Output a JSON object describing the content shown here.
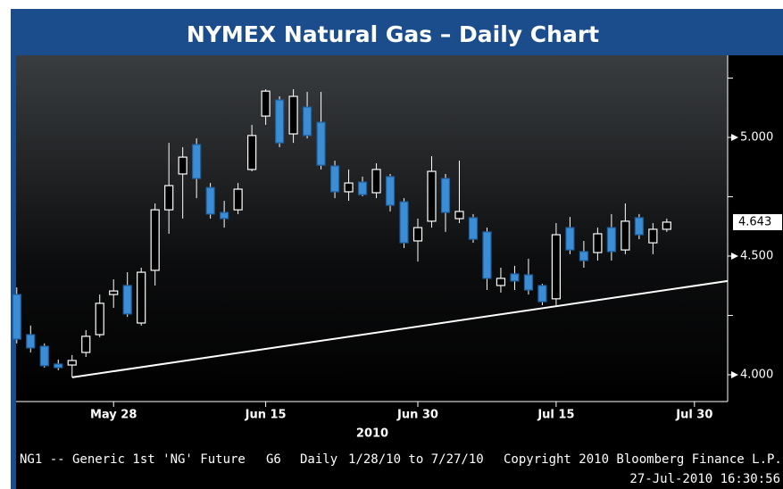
{
  "chart_data": {
    "type": "candlestick",
    "title": "NYMEX Natural Gas  – Daily Chart",
    "year_label": "2010",
    "footer": {
      "security": "NG1 -- Generic 1st 'NG' Future",
      "page": "G6",
      "period": "Daily",
      "range": "1/28/10 to 7/27/10",
      "copyright": "Copyright 2010 Bloomberg Finance L.P.",
      "timestamp": "27-Jul-2010 16:30:56"
    },
    "up_color": "#ffffff",
    "down_color": "#3b8ed6",
    "open": [
      4.338,
      4.169,
      4.12,
      4.045,
      4.041,
      4.094,
      4.169,
      4.338,
      4.376,
      4.218,
      4.44,
      4.695,
      4.846,
      4.97,
      4.789,
      4.684,
      4.695,
      4.865,
      5.09,
      5.158,
      5.015,
      5.128,
      5.064,
      4.88,
      4.771,
      4.812,
      4.767,
      4.835,
      4.729,
      4.564,
      4.647,
      4.827,
      4.658,
      4.662,
      4.602,
      4.376,
      4.425,
      4.421,
      4.376,
      4.32,
      4.62,
      4.519,
      4.515,
      4.62,
      4.526,
      4.662,
      4.556,
      4.613
    ],
    "high": [
      4.368,
      4.207,
      4.132,
      4.064,
      4.083,
      4.188,
      4.338,
      4.402,
      4.432,
      4.451,
      4.722,
      4.977,
      4.959,
      4.996,
      4.808,
      4.733,
      4.808,
      5.053,
      5.203,
      5.173,
      5.203,
      5.192,
      5.192,
      4.902,
      4.865,
      4.835,
      4.891,
      4.846,
      4.744,
      4.658,
      4.921,
      4.846,
      4.902,
      4.677,
      4.62,
      4.451,
      4.459,
      4.489,
      4.383,
      4.639,
      4.665,
      4.564,
      4.62,
      4.677,
      4.722,
      4.677,
      4.639,
      4.658
    ],
    "low": [
      4.132,
      4.094,
      4.03,
      4.019,
      3.989,
      4.075,
      4.158,
      4.282,
      4.244,
      4.207,
      4.376,
      4.594,
      4.658,
      4.744,
      4.658,
      4.62,
      4.677,
      4.857,
      5.053,
      4.959,
      4.977,
      4.996,
      4.865,
      4.744,
      4.733,
      4.752,
      4.744,
      4.688,
      4.534,
      4.477,
      4.62,
      4.602,
      4.639,
      4.556,
      4.357,
      4.346,
      4.357,
      4.338,
      4.293,
      4.293,
      4.508,
      4.451,
      4.481,
      4.481,
      4.508,
      4.571,
      4.508,
      4.602
    ],
    "close": [
      4.15,
      4.113,
      4.038,
      4.03,
      4.06,
      4.162,
      4.301,
      4.353,
      4.256,
      4.432,
      4.695,
      4.797,
      4.917,
      4.827,
      4.677,
      4.658,
      4.782,
      5.008,
      5.195,
      4.977,
      5.173,
      5.008,
      4.883,
      4.771,
      4.808,
      4.759,
      4.865,
      4.714,
      4.556,
      4.62,
      4.857,
      4.684,
      4.688,
      4.571,
      4.406,
      4.406,
      4.395,
      4.357,
      4.308,
      4.59,
      4.526,
      4.481,
      4.594,
      4.519,
      4.647,
      4.59,
      4.613,
      4.643
    ],
    "last_price": {
      "value": 4.643,
      "label": "4.643"
    },
    "trendline": {
      "x": [
        4,
        51.4
      ],
      "y": [
        3.989,
        4.395
      ],
      "color": "#ffffff"
    },
    "xlim": [
      -0.05,
      51.4
    ],
    "xticks": [
      {
        "value": 7,
        "label": "May 28"
      },
      {
        "value": 18,
        "label": "Jun 15"
      },
      {
        "value": 29,
        "label": "Jun 30"
      },
      {
        "value": 39,
        "label": "Jul 15"
      },
      {
        "value": 49,
        "label": "Jul 30"
      }
    ],
    "ylim": [
      3.887,
      5.346
    ],
    "yticks": [
      {
        "value": 4,
        "label": "4.000"
      },
      {
        "value": 4.5,
        "label": "4.500"
      },
      {
        "value": 5,
        "label": "5.000"
      }
    ],
    "yminor_ticks": [
      4.25,
      4.75,
      5.25
    ]
  }
}
